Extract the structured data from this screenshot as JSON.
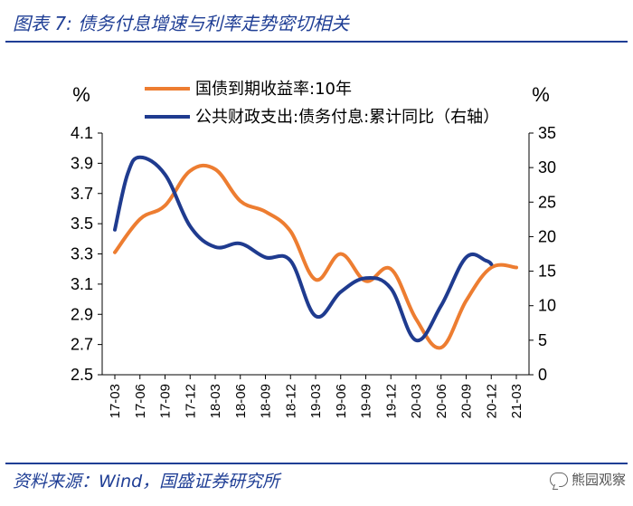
{
  "header": {
    "title": "图表 7:  债务付息增速与利率走势密切相关"
  },
  "footer": {
    "source": "资料来源：Wind，国盛证券研究所",
    "watermark": "熊园观察"
  },
  "colors": {
    "orange": "#ED7D31",
    "blue": "#1F3B8F",
    "title": "#1f3e95"
  },
  "chart_data": {
    "type": "line",
    "categories": [
      "17-03",
      "17-06",
      "17-09",
      "17-12",
      "18-03",
      "18-06",
      "18-09",
      "18-12",
      "19-03",
      "19-06",
      "19-09",
      "19-12",
      "20-03",
      "20-06",
      "20-09",
      "20-12",
      "21-03"
    ],
    "left_unit": "%",
    "right_unit": "%",
    "left_axis": {
      "min": 2.5,
      "max": 4.1,
      "ticks": [
        "4.1",
        "3.9",
        "3.7",
        "3.5",
        "3.3",
        "3.1",
        "2.9",
        "2.7",
        "2.5"
      ]
    },
    "right_axis": {
      "min": 0,
      "max": 35,
      "ticks": [
        "35",
        "30",
        "25",
        "20",
        "15",
        "10",
        "5",
        "0"
      ]
    },
    "series": [
      {
        "name": "国债到期收益率:10年",
        "axis": "left",
        "color": "#ED7D31",
        "points": [
          [
            0,
            3.31
          ],
          [
            1,
            3.53
          ],
          [
            2,
            3.62
          ],
          [
            3,
            3.85
          ],
          [
            4,
            3.86
          ],
          [
            5,
            3.65
          ],
          [
            6,
            3.58
          ],
          [
            7,
            3.45
          ],
          [
            8,
            3.13
          ],
          [
            9,
            3.3
          ],
          [
            10,
            3.12
          ],
          [
            11,
            3.2
          ],
          [
            12,
            2.87
          ],
          [
            13,
            2.68
          ],
          [
            14,
            2.99
          ],
          [
            15,
            3.21
          ],
          [
            16,
            3.21
          ]
        ]
      },
      {
        "name": "公共财政支出:债务付息:累计同比（右轴）",
        "axis": "right",
        "color": "#1F3B8F",
        "points": [
          [
            0,
            21.0
          ],
          [
            0.5,
            29.0
          ],
          [
            1,
            31.5
          ],
          [
            2,
            29.0
          ],
          [
            3,
            21.5
          ],
          [
            4,
            18.5
          ],
          [
            5,
            19.0
          ],
          [
            6,
            17.0
          ],
          [
            7,
            16.5
          ],
          [
            8,
            8.5
          ],
          [
            9,
            12.0
          ],
          [
            10,
            14.0
          ],
          [
            11,
            12.5
          ],
          [
            12,
            5.0
          ],
          [
            13,
            10.0
          ],
          [
            14,
            17.0
          ],
          [
            14.8,
            16.5
          ],
          [
            15,
            16.0
          ]
        ]
      }
    ],
    "legend_position": "top-center"
  }
}
